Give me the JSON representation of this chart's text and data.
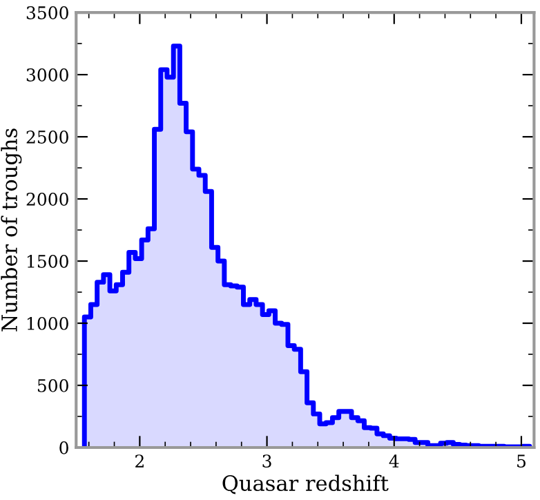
{
  "chart_data": {
    "type": "histogram",
    "xlabel": "Quasar redshift",
    "ylabel": "Number of troughs",
    "color": "#0000ff",
    "bins": [
      1.565,
      1.615,
      1.665,
      1.715,
      1.765,
      1.815,
      1.865,
      1.915,
      1.965,
      2.015,
      2.065,
      2.115,
      2.165,
      2.215,
      2.265,
      2.315,
      2.365,
      2.415,
      2.465,
      2.515,
      2.565,
      2.615,
      2.665,
      2.715,
      2.765,
      2.815,
      2.865,
      2.915,
      2.965,
      3.015,
      3.065,
      3.115,
      3.165,
      3.215,
      3.265,
      3.315,
      3.365,
      3.415,
      3.465,
      3.515,
      3.565,
      3.615,
      3.665,
      3.715,
      3.765,
      3.815,
      3.865,
      3.915,
      3.965,
      4.015,
      4.065,
      4.115,
      4.165,
      4.215,
      4.265,
      4.315,
      4.365,
      4.415,
      4.465,
      4.515,
      4.565,
      4.615,
      4.665,
      4.715,
      4.765,
      4.815,
      4.865,
      4.915,
      4.965,
      5.015,
      5.065
    ],
    "values": [
      1050,
      1150,
      1330,
      1390,
      1260,
      1310,
      1410,
      1570,
      1520,
      1670,
      1760,
      2560,
      3040,
      2980,
      3230,
      2770,
      2540,
      2240,
      2190,
      2060,
      1610,
      1500,
      1310,
      1300,
      1290,
      1150,
      1190,
      1150,
      1070,
      1100,
      1000,
      990,
      820,
      790,
      610,
      360,
      270,
      190,
      200,
      240,
      290,
      290,
      240,
      215,
      160,
      155,
      110,
      95,
      75,
      70,
      70,
      65,
      40,
      40,
      15,
      15,
      35,
      40,
      25,
      20,
      15,
      15,
      10,
      10,
      10,
      10,
      5,
      5,
      5,
      10
    ],
    "xlim": [
      1.5,
      5.1
    ],
    "ylim": [
      0,
      3500
    ],
    "xticks": [
      {
        "value": 1.6,
        "label": null
      },
      {
        "value": 1.8,
        "label": null
      },
      2,
      {
        "value": 2.2,
        "label": null
      },
      {
        "value": 2.4,
        "label": null
      },
      {
        "value": 2.6,
        "label": null
      },
      {
        "value": 2.8,
        "label": null
      },
      3,
      {
        "value": 3.2,
        "label": null
      },
      {
        "value": 3.4,
        "label": null
      },
      {
        "value": 3.6,
        "label": null
      },
      {
        "value": 3.8,
        "label": null
      },
      4,
      {
        "value": 4.2,
        "label": null
      },
      {
        "value": 4.4,
        "label": null
      },
      {
        "value": 4.6,
        "label": null
      },
      {
        "value": 4.8,
        "label": null
      },
      5
    ],
    "yticks": [
      0,
      {
        "value": 250,
        "label": null
      },
      500,
      {
        "value": 750,
        "label": null
      },
      1000,
      {
        "value": 1250,
        "label": null
      },
      1500,
      {
        "value": 1750,
        "label": null
      },
      2000,
      {
        "value": 2250,
        "label": null
      },
      2500,
      {
        "value": 2750,
        "label": null
      },
      3000,
      {
        "value": 3250,
        "label": null
      },
      3500
    ],
    "grid": false
  }
}
